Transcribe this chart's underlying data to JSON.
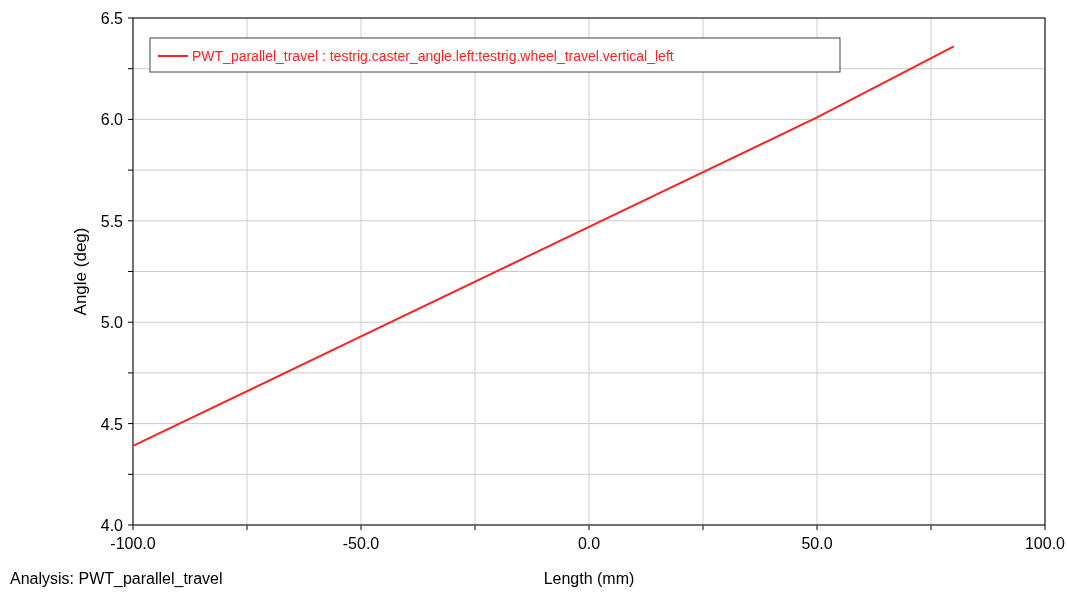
{
  "chart_data": {
    "type": "line",
    "xlabel": "Length (mm)",
    "ylabel": "Angle (deg)",
    "annotations": [
      "Analysis:  PWT_parallel_travel"
    ],
    "x": [
      -100,
      -50,
      0,
      50,
      80
    ],
    "series": [
      {
        "name": "PWT_parallel_travel : testrig.caster_angle.left:testrig.wheel_travel.vertical_left",
        "color": "#ff2020",
        "values": [
          4.39,
          4.93,
          5.47,
          6.01,
          6.36
        ]
      }
    ],
    "xlim": [
      -100,
      100
    ],
    "xticks": [
      {
        "value": -100,
        "label": "-100.0"
      },
      {
        "value": -75,
        "label": null
      },
      {
        "value": -50,
        "label": "-50.0"
      },
      {
        "value": -25,
        "label": null
      },
      {
        "value": 0,
        "label": "0.0"
      },
      {
        "value": 25,
        "label": null
      },
      {
        "value": 50,
        "label": "50.0"
      },
      {
        "value": 75,
        "label": null
      },
      {
        "value": 100,
        "label": "100.0"
      }
    ],
    "ylim": [
      4,
      6.5
    ],
    "yticks": [
      {
        "value": 4,
        "label": "4.0"
      },
      {
        "value": 4.25,
        "label": null
      },
      {
        "value": 4.5,
        "label": "4.5"
      },
      {
        "value": 4.75,
        "label": null
      },
      {
        "value": 5,
        "label": "5.0"
      },
      {
        "value": 5.25,
        "label": null
      },
      {
        "value": 5.5,
        "label": "5.5"
      },
      {
        "value": 5.75,
        "label": null
      },
      {
        "value": 6,
        "label": "6.0"
      },
      {
        "value": 6.25,
        "label": null
      },
      {
        "value": 6.5,
        "label": "6.5"
      }
    ],
    "grid": true,
    "legend": "top left",
    "marker": "none",
    "line_style": "solid"
  }
}
